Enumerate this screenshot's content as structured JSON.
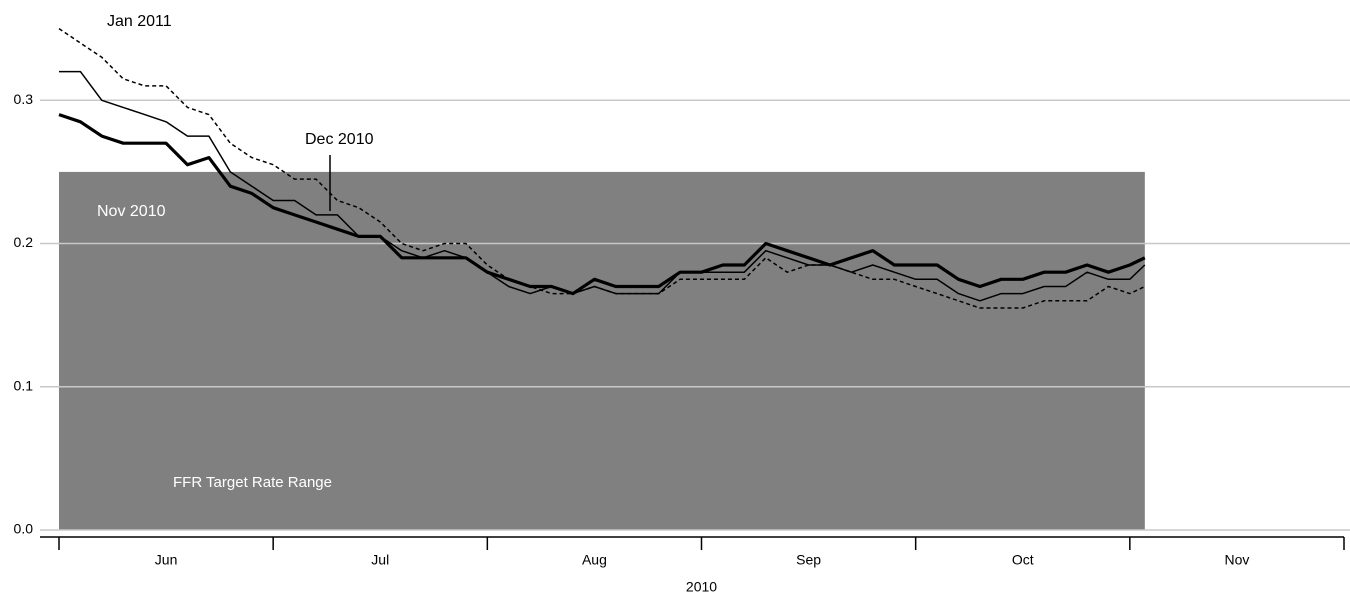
{
  "chart_data": {
    "type": "line",
    "xlabel": "2010",
    "categories": [
      "Jun",
      "Jul",
      "Aug",
      "Sep",
      "Oct",
      "Nov"
    ],
    "xlim": [
      6,
      12
    ],
    "xticks": [
      6,
      7,
      8,
      9,
      10,
      11,
      12
    ],
    "ylim": [
      0,
      0.37
    ],
    "yticks": [
      {
        "value": 0,
        "label": "0.0"
      },
      0.1,
      0.2,
      0.3
    ],
    "grid": true,
    "shade": {
      "label": "FFR Target Rate Range",
      "ylim": [
        0,
        0.25
      ],
      "xlim": [
        6,
        11.07
      ],
      "color": "#808080"
    },
    "x": [
      6,
      6.1,
      6.2,
      6.3,
      6.4,
      6.5,
      6.6,
      6.7,
      6.8,
      6.9,
      7,
      7.1,
      7.2,
      7.3,
      7.4,
      7.5,
      7.6,
      7.7,
      7.8,
      7.9,
      8,
      8.1,
      8.2,
      8.3,
      8.4,
      8.5,
      8.6,
      8.7,
      8.8,
      8.9,
      9,
      9.1,
      9.2,
      9.3,
      9.4,
      9.5,
      9.6,
      9.7,
      9.8,
      9.9,
      10,
      10.1,
      10.2,
      10.3,
      10.4,
      10.5,
      10.6,
      10.7,
      10.8,
      10.9,
      11,
      11.07
    ],
    "series": [
      {
        "name": "Nov 2010",
        "color": "#000000",
        "style": "thick",
        "values": [
          0.29,
          0.285,
          0.275,
          0.27,
          0.27,
          0.27,
          0.255,
          0.26,
          0.24,
          0.235,
          0.225,
          0.22,
          0.215,
          0.21,
          0.205,
          0.205,
          0.19,
          0.19,
          0.19,
          0.19,
          0.18,
          0.175,
          0.17,
          0.17,
          0.165,
          0.175,
          0.17,
          0.17,
          0.17,
          0.18,
          0.18,
          0.185,
          0.185,
          0.2,
          0.195,
          0.19,
          0.185,
          0.19,
          0.195,
          0.185,
          0.185,
          0.185,
          0.175,
          0.17,
          0.175,
          0.175,
          0.18,
          0.18,
          0.185,
          0.18,
          0.185,
          0.19
        ]
      },
      {
        "name": "Dec 2010",
        "color": "#000000",
        "style": "thin",
        "values": [
          0.32,
          0.32,
          0.3,
          0.295,
          0.29,
          0.285,
          0.275,
          0.275,
          0.25,
          0.24,
          0.23,
          0.23,
          0.22,
          0.22,
          0.205,
          0.205,
          0.195,
          0.19,
          0.195,
          0.19,
          0.18,
          0.17,
          0.165,
          0.17,
          0.165,
          0.17,
          0.165,
          0.165,
          0.165,
          0.18,
          0.18,
          0.18,
          0.18,
          0.195,
          0.19,
          0.185,
          0.185,
          0.18,
          0.185,
          0.18,
          0.175,
          0.175,
          0.165,
          0.16,
          0.165,
          0.165,
          0.17,
          0.17,
          0.18,
          0.175,
          0.175,
          0.185
        ]
      },
      {
        "name": "Jan 2011",
        "color": "#000000",
        "style": "dashed",
        "values": [
          0.35,
          0.34,
          0.33,
          0.315,
          0.31,
          0.31,
          0.295,
          0.29,
          0.27,
          0.26,
          0.255,
          0.245,
          0.245,
          0.23,
          0.225,
          0.215,
          0.2,
          0.195,
          0.2,
          0.2,
          0.185,
          0.175,
          0.17,
          0.165,
          0.165,
          0.17,
          0.165,
          0.165,
          0.165,
          0.175,
          0.175,
          0.175,
          0.175,
          0.19,
          0.18,
          0.185,
          0.185,
          0.18,
          0.175,
          0.175,
          0.17,
          0.165,
          0.16,
          0.155,
          0.155,
          0.155,
          0.16,
          0.16,
          0.16,
          0.17,
          0.165,
          0.17
        ]
      }
    ]
  }
}
